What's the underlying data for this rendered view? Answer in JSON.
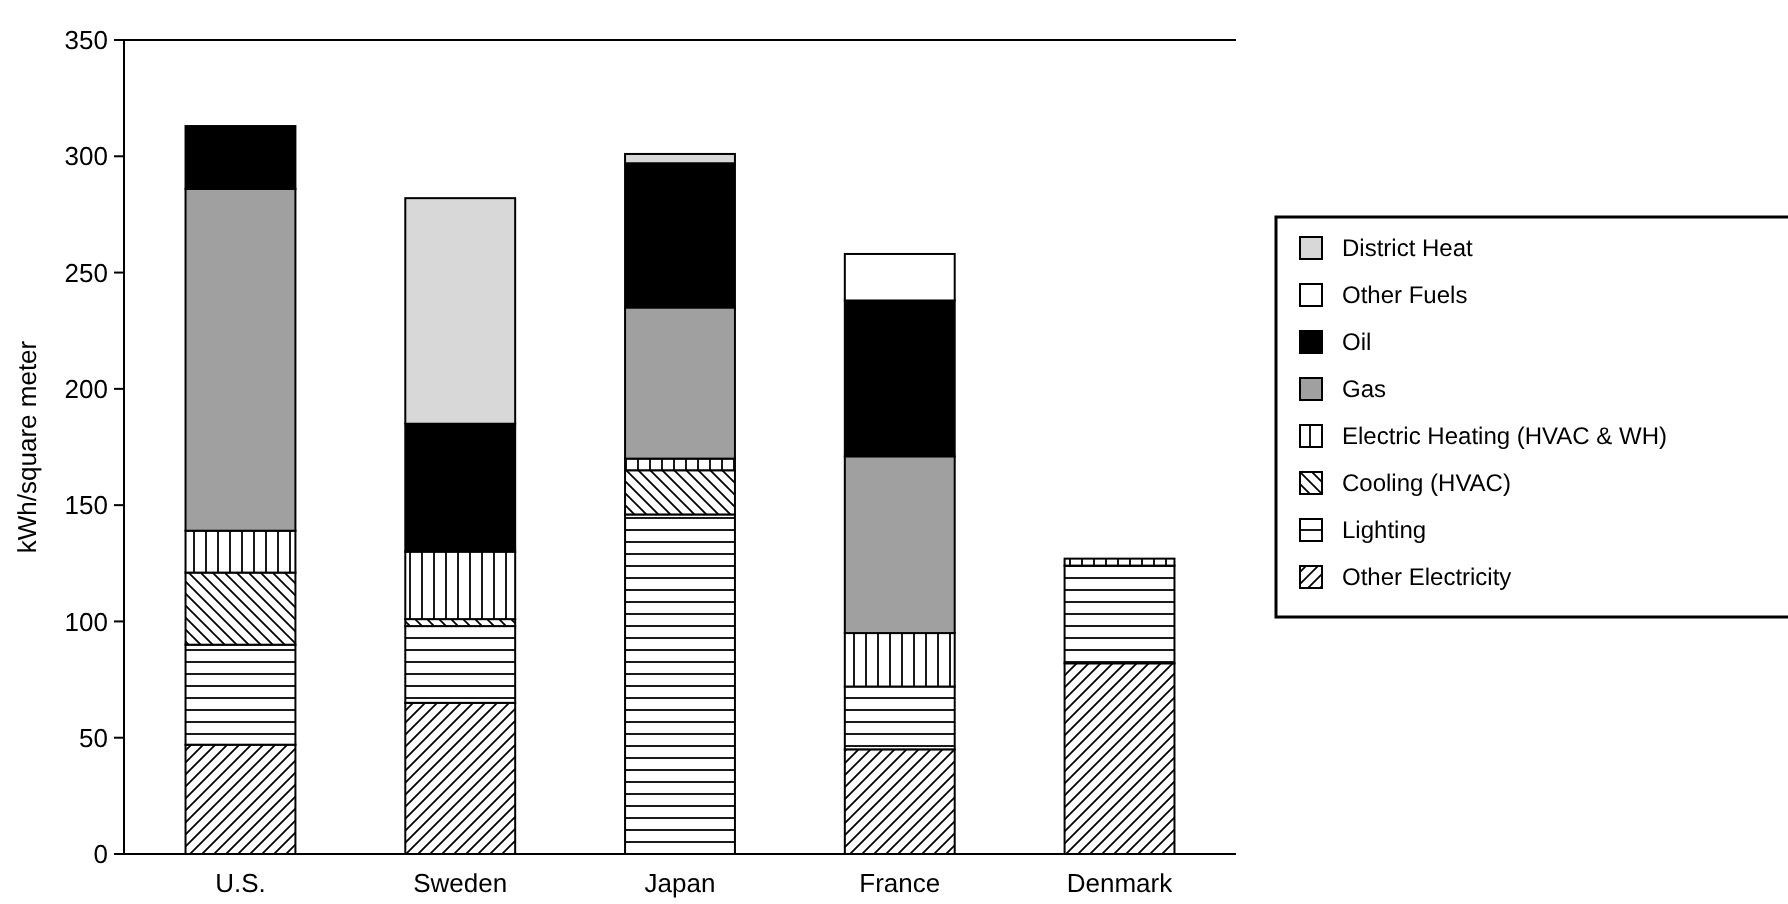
{
  "chart_data": {
    "type": "bar",
    "stacked": true,
    "ylabel": "kWh/square meter",
    "categories": [
      "U.S.",
      "Sweden",
      "Japan",
      "France",
      "Denmark"
    ],
    "ylim": [
      0,
      350
    ],
    "yticks": [
      0,
      50,
      100,
      150,
      200,
      250,
      300,
      350
    ],
    "grid": false,
    "legend": "right",
    "series": [
      {
        "name": "Other  Electricity",
        "color": "#000000",
        "values": [
          47,
          65,
          0,
          45,
          82
        ]
      },
      {
        "name": "Lighting",
        "color": "#000000",
        "values": [
          43,
          33,
          146,
          27,
          42
        ]
      },
      {
        "name": "Cooling (HVAC)",
        "color": "#000000",
        "values": [
          31,
          3,
          19,
          0,
          0
        ]
      },
      {
        "name": "Electric Heating (HVAC & WH)",
        "color": "#000000",
        "values": [
          18,
          29,
          5,
          23,
          3
        ]
      },
      {
        "name": "Gas",
        "color": "#a0a0a0",
        "values": [
          147,
          0,
          65,
          76,
          0
        ]
      },
      {
        "name": "Oil",
        "color": "#000000",
        "values": [
          27,
          55,
          62,
          67,
          0
        ]
      },
      {
        "name": "Other Fuels",
        "color": "#ffffff",
        "values": [
          0,
          0,
          0,
          20,
          0
        ]
      },
      {
        "name": "District Heat",
        "color": "#d8d8d8",
        "values": [
          0,
          97,
          4,
          0,
          0
        ]
      }
    ]
  }
}
